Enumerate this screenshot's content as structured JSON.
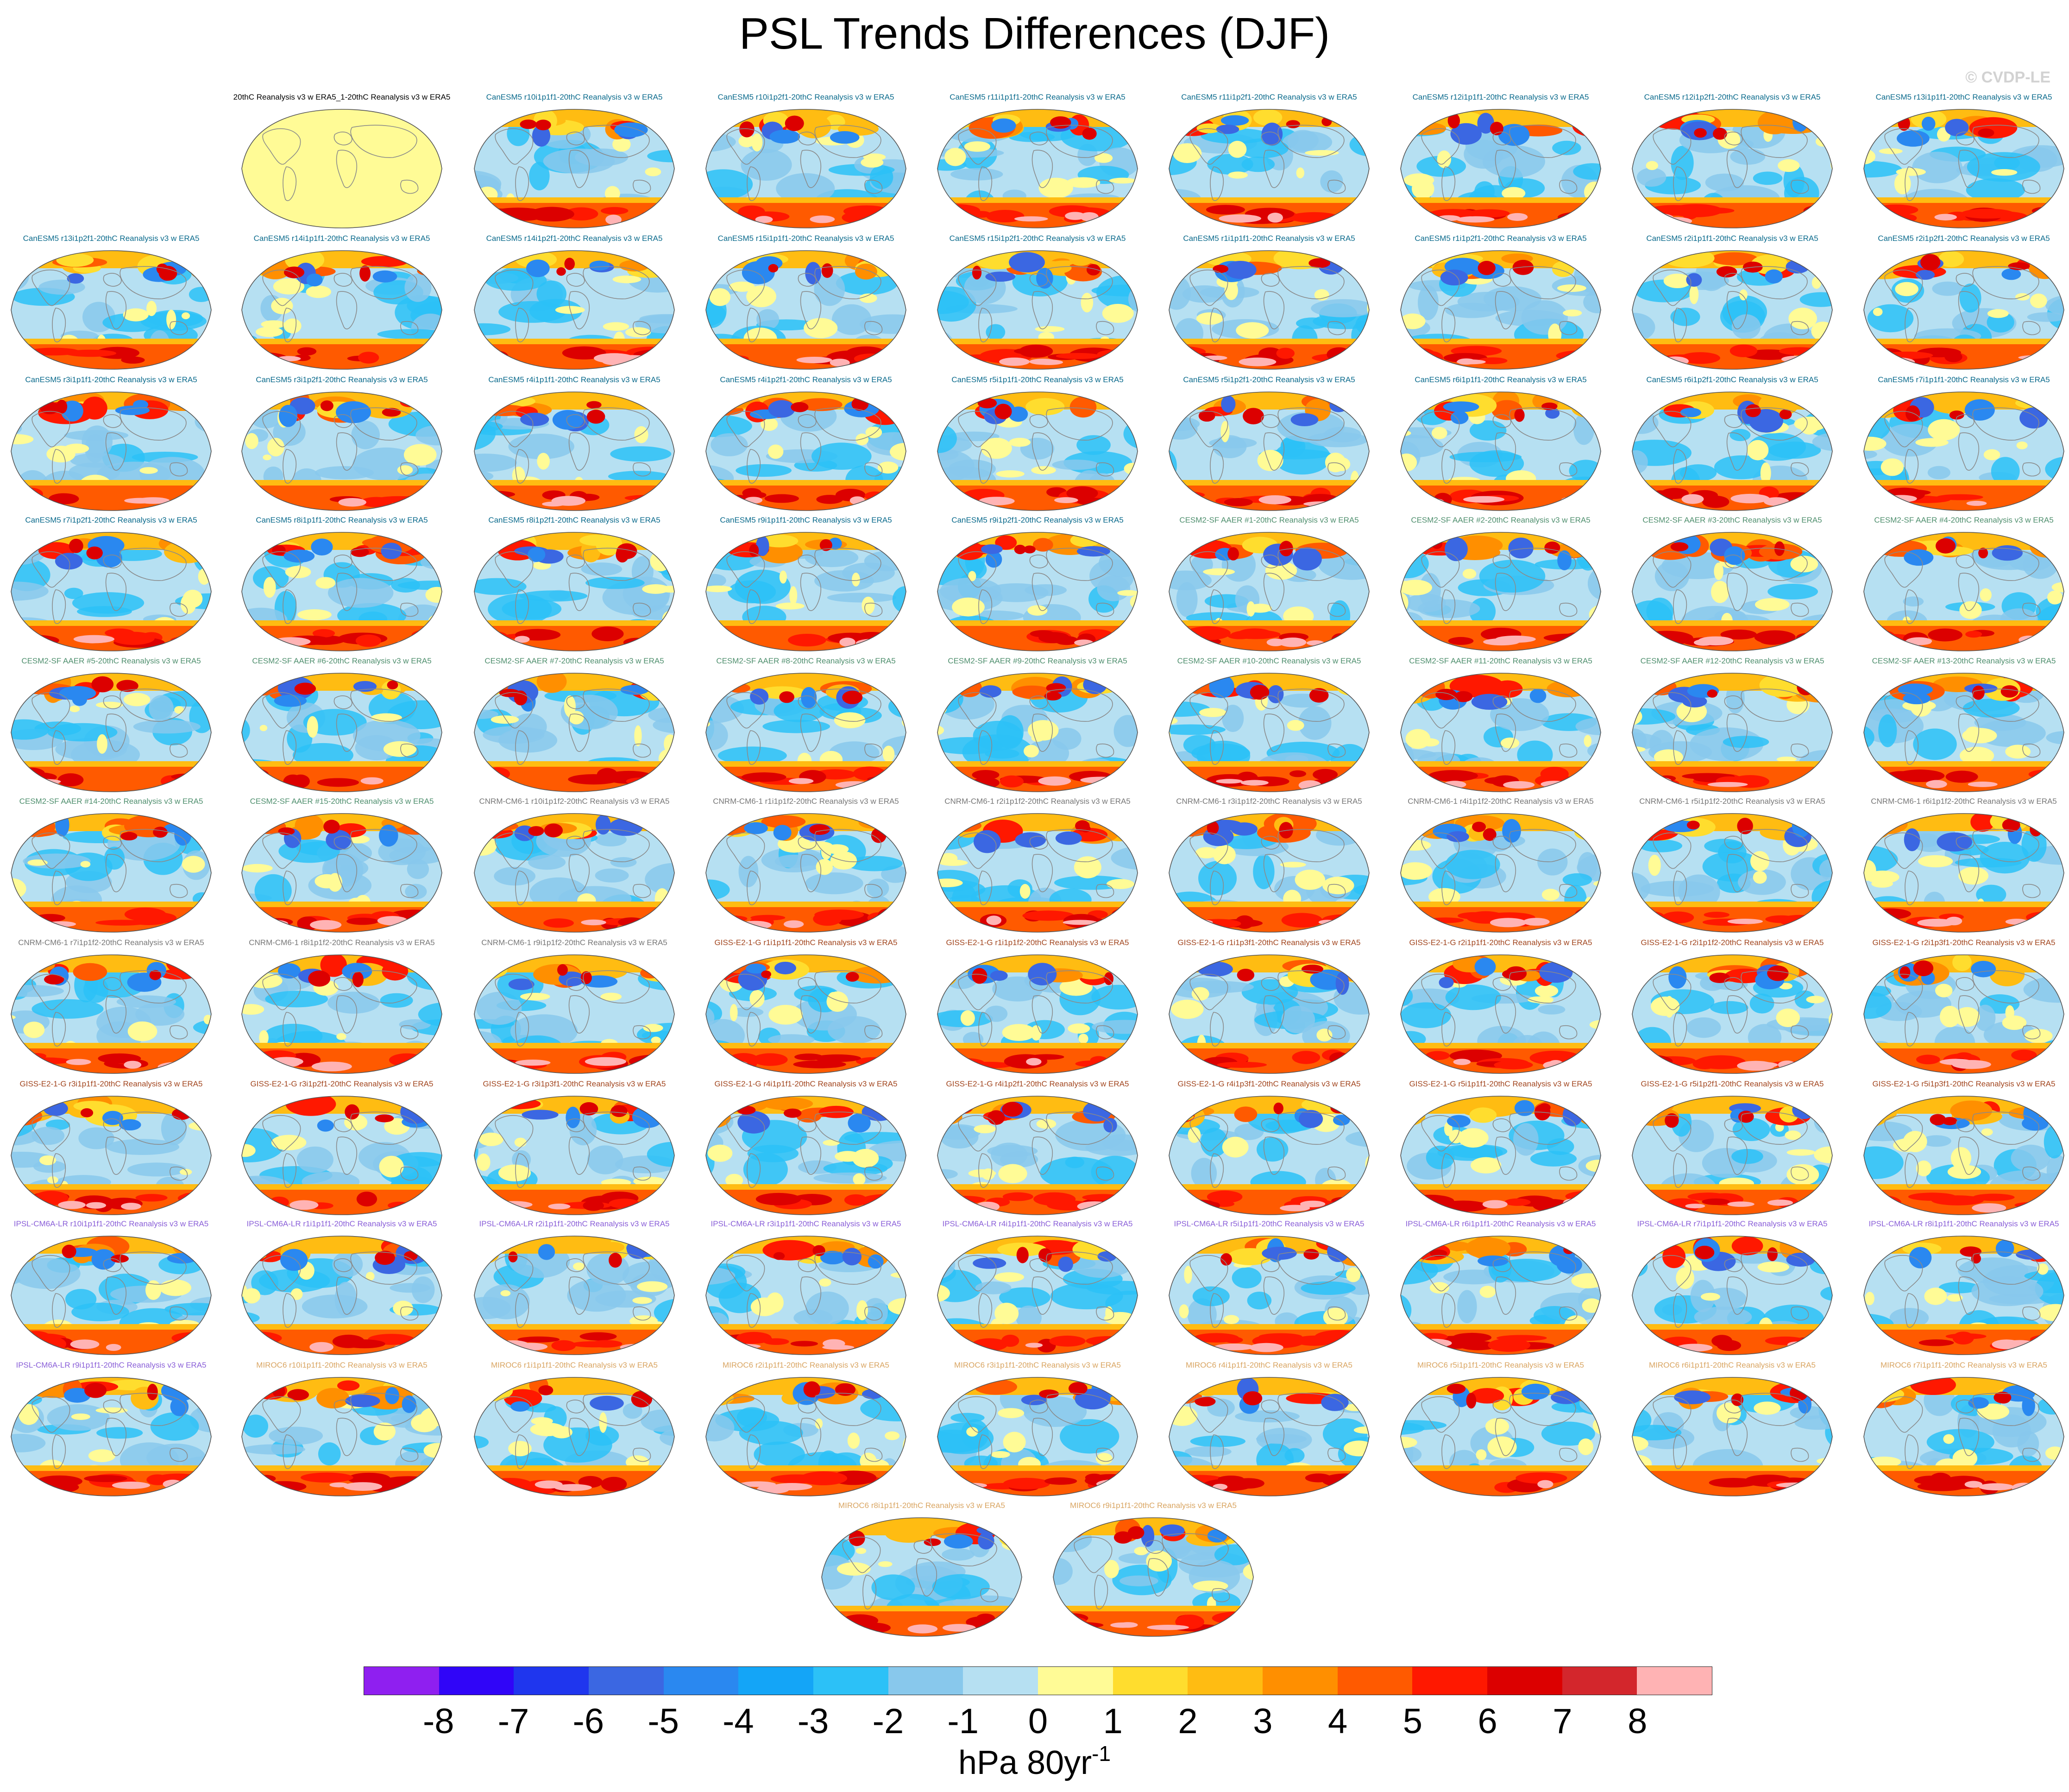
{
  "title": "PSL Trends Differences (DJF)",
  "watermark": "© CVDP-LE",
  "colorbar": {
    "colors": [
      "#8f1ff0",
      "#3005f8",
      "#1f36ee",
      "#3b67e2",
      "#2a88f0",
      "#14a5f7",
      "#2cc1f7",
      "#88c8ec",
      "#b6e0f2",
      "#fffb96",
      "#ffdd2e",
      "#ffbc12",
      "#ff8f00",
      "#ff5a00",
      "#ff1800",
      "#dc0000",
      "#d3262c",
      "#ffb3b4"
    ],
    "ticks": [
      "-8",
      "-7",
      "-6",
      "-5",
      "-4",
      "-3",
      "-2",
      "-1",
      "0",
      "1",
      "2",
      "3",
      "4",
      "5",
      "6",
      "7",
      "8"
    ],
    "units_main": "hPa 80yr",
    "units_sup": "-1"
  },
  "family_colors": {
    "obs": "#000000",
    "CanESM5": "#0a6a8c",
    "CESM2": "#4f8f6e",
    "CNRM": "#777777",
    "GISS": "#a2461f",
    "IPSL": "#8a5fd8",
    "MIROC": "#d9a562"
  },
  "panels": [
    {
      "label": "20thC Reanalysis v3 w ERA5_1-20thC Reanalysis v3 w ERA5",
      "family": "obs"
    },
    {
      "label": "CanESM5 r10i1p1f1-20thC Reanalysis v3 w ERA5",
      "family": "CanESM5"
    },
    {
      "label": "CanESM5 r10i1p2f1-20thC Reanalysis v3 w ERA5",
      "family": "CanESM5"
    },
    {
      "label": "CanESM5 r11i1p1f1-20thC Reanalysis v3 w ERA5",
      "family": "CanESM5"
    },
    {
      "label": "CanESM5 r11i1p2f1-20thC Reanalysis v3 w ERA5",
      "family": "CanESM5"
    },
    {
      "label": "CanESM5 r12i1p1f1-20thC Reanalysis v3 w ERA5",
      "family": "CanESM5"
    },
    {
      "label": "CanESM5 r12i1p2f1-20thC Reanalysis v3 w ERA5",
      "family": "CanESM5"
    },
    {
      "label": "CanESM5 r13i1p1f1-20thC Reanalysis v3 w ERA5",
      "family": "CanESM5"
    },
    {
      "label": "CanESM5 r13i1p2f1-20thC Reanalysis v3 w ERA5",
      "family": "CanESM5"
    },
    {
      "label": "CanESM5 r14i1p1f1-20thC Reanalysis v3 w ERA5",
      "family": "CanESM5"
    },
    {
      "label": "CanESM5 r14i1p2f1-20thC Reanalysis v3 w ERA5",
      "family": "CanESM5"
    },
    {
      "label": "CanESM5 r15i1p1f1-20thC Reanalysis v3 w ERA5",
      "family": "CanESM5"
    },
    {
      "label": "CanESM5 r15i1p2f1-20thC Reanalysis v3 w ERA5",
      "family": "CanESM5"
    },
    {
      "label": "CanESM5 r1i1p1f1-20thC Reanalysis v3 w ERA5",
      "family": "CanESM5"
    },
    {
      "label": "CanESM5 r1i1p2f1-20thC Reanalysis v3 w ERA5",
      "family": "CanESM5"
    },
    {
      "label": "CanESM5 r2i1p1f1-20thC Reanalysis v3 w ERA5",
      "family": "CanESM5"
    },
    {
      "label": "CanESM5 r2i1p2f1-20thC Reanalysis v3 w ERA5",
      "family": "CanESM5"
    },
    {
      "label": "CanESM5 r3i1p1f1-20thC Reanalysis v3 w ERA5",
      "family": "CanESM5"
    },
    {
      "label": "CanESM5 r3i1p2f1-20thC Reanalysis v3 w ERA5",
      "family": "CanESM5"
    },
    {
      "label": "CanESM5 r4i1p1f1-20thC Reanalysis v3 w ERA5",
      "family": "CanESM5"
    },
    {
      "label": "CanESM5 r4i1p2f1-20thC Reanalysis v3 w ERA5",
      "family": "CanESM5"
    },
    {
      "label": "CanESM5 r5i1p1f1-20thC Reanalysis v3 w ERA5",
      "family": "CanESM5"
    },
    {
      "label": "CanESM5 r5i1p2f1-20thC Reanalysis v3 w ERA5",
      "family": "CanESM5"
    },
    {
      "label": "CanESM5 r6i1p1f1-20thC Reanalysis v3 w ERA5",
      "family": "CanESM5"
    },
    {
      "label": "CanESM5 r6i1p2f1-20thC Reanalysis v3 w ERA5",
      "family": "CanESM5"
    },
    {
      "label": "CanESM5 r7i1p1f1-20thC Reanalysis v3 w ERA5",
      "family": "CanESM5"
    },
    {
      "label": "CanESM5 r7i1p2f1-20thC Reanalysis v3 w ERA5",
      "family": "CanESM5"
    },
    {
      "label": "CanESM5 r8i1p1f1-20thC Reanalysis v3 w ERA5",
      "family": "CanESM5"
    },
    {
      "label": "CanESM5 r8i1p2f1-20thC Reanalysis v3 w ERA5",
      "family": "CanESM5"
    },
    {
      "label": "CanESM5 r9i1p1f1-20thC Reanalysis v3 w ERA5",
      "family": "CanESM5"
    },
    {
      "label": "CanESM5 r9i1p2f1-20thC Reanalysis v3 w ERA5",
      "family": "CanESM5"
    },
    {
      "label": "CESM2-SF AAER #1-20thC Reanalysis v3 w ERA5",
      "family": "CESM2"
    },
    {
      "label": "CESM2-SF AAER #2-20thC Reanalysis v3 w ERA5",
      "family": "CESM2"
    },
    {
      "label": "CESM2-SF AAER #3-20thC Reanalysis v3 w ERA5",
      "family": "CESM2"
    },
    {
      "label": "CESM2-SF AAER #4-20thC Reanalysis v3 w ERA5",
      "family": "CESM2"
    },
    {
      "label": "CESM2-SF AAER #5-20thC Reanalysis v3 w ERA5",
      "family": "CESM2"
    },
    {
      "label": "CESM2-SF AAER #6-20thC Reanalysis v3 w ERA5",
      "family": "CESM2"
    },
    {
      "label": "CESM2-SF AAER #7-20thC Reanalysis v3 w ERA5",
      "family": "CESM2"
    },
    {
      "label": "CESM2-SF AAER #8-20thC Reanalysis v3 w ERA5",
      "family": "CESM2"
    },
    {
      "label": "CESM2-SF AAER #9-20thC Reanalysis v3 w ERA5",
      "family": "CESM2"
    },
    {
      "label": "CESM2-SF AAER #10-20thC Reanalysis v3 w ERA5",
      "family": "CESM2"
    },
    {
      "label": "CESM2-SF AAER #11-20thC Reanalysis v3 w ERA5",
      "family": "CESM2"
    },
    {
      "label": "CESM2-SF AAER #12-20thC Reanalysis v3 w ERA5",
      "family": "CESM2"
    },
    {
      "label": "CESM2-SF AAER #13-20thC Reanalysis v3 w ERA5",
      "family": "CESM2"
    },
    {
      "label": "CESM2-SF AAER #14-20thC Reanalysis v3 w ERA5",
      "family": "CESM2"
    },
    {
      "label": "CESM2-SF AAER #15-20thC Reanalysis v3 w ERA5",
      "family": "CESM2"
    },
    {
      "label": "CNRM-CM6-1 r10i1p1f2-20thC Reanalysis v3 w ERA5",
      "family": "CNRM"
    },
    {
      "label": "CNRM-CM6-1 r1i1p1f2-20thC Reanalysis v3 w ERA5",
      "family": "CNRM"
    },
    {
      "label": "CNRM-CM6-1 r2i1p1f2-20thC Reanalysis v3 w ERA5",
      "family": "CNRM"
    },
    {
      "label": "CNRM-CM6-1 r3i1p1f2-20thC Reanalysis v3 w ERA5",
      "family": "CNRM"
    },
    {
      "label": "CNRM-CM6-1 r4i1p1f2-20thC Reanalysis v3 w ERA5",
      "family": "CNRM"
    },
    {
      "label": "CNRM-CM6-1 r5i1p1f2-20thC Reanalysis v3 w ERA5",
      "family": "CNRM"
    },
    {
      "label": "CNRM-CM6-1 r6i1p1f2-20thC Reanalysis v3 w ERA5",
      "family": "CNRM"
    },
    {
      "label": "CNRM-CM6-1 r7i1p1f2-20thC Reanalysis v3 w ERA5",
      "family": "CNRM"
    },
    {
      "label": "CNRM-CM6-1 r8i1p1f2-20thC Reanalysis v3 w ERA5",
      "family": "CNRM"
    },
    {
      "label": "CNRM-CM6-1 r9i1p1f2-20thC Reanalysis v3 w ERA5",
      "family": "CNRM"
    },
    {
      "label": "GISS-E2-1-G r1i1p1f1-20thC Reanalysis v3 w ERA5",
      "family": "GISS"
    },
    {
      "label": "GISS-E2-1-G r1i1p1f2-20thC Reanalysis v3 w ERA5",
      "family": "GISS"
    },
    {
      "label": "GISS-E2-1-G r1i1p3f1-20thC Reanalysis v3 w ERA5",
      "family": "GISS"
    },
    {
      "label": "GISS-E2-1-G r2i1p1f1-20thC Reanalysis v3 w ERA5",
      "family": "GISS"
    },
    {
      "label": "GISS-E2-1-G r2i1p1f2-20thC Reanalysis v3 w ERA5",
      "family": "GISS"
    },
    {
      "label": "GISS-E2-1-G r2i1p3f1-20thC Reanalysis v3 w ERA5",
      "family": "GISS"
    },
    {
      "label": "GISS-E2-1-G r3i1p1f1-20thC Reanalysis v3 w ERA5",
      "family": "GISS"
    },
    {
      "label": "GISS-E2-1-G r3i1p2f1-20thC Reanalysis v3 w ERA5",
      "family": "GISS"
    },
    {
      "label": "GISS-E2-1-G r3i1p3f1-20thC Reanalysis v3 w ERA5",
      "family": "GISS"
    },
    {
      "label": "GISS-E2-1-G r4i1p1f1-20thC Reanalysis v3 w ERA5",
      "family": "GISS"
    },
    {
      "label": "GISS-E2-1-G r4i1p2f1-20thC Reanalysis v3 w ERA5",
      "family": "GISS"
    },
    {
      "label": "GISS-E2-1-G r4i1p3f1-20thC Reanalysis v3 w ERA5",
      "family": "GISS"
    },
    {
      "label": "GISS-E2-1-G r5i1p1f1-20thC Reanalysis v3 w ERA5",
      "family": "GISS"
    },
    {
      "label": "GISS-E2-1-G r5i1p2f1-20thC Reanalysis v3 w ERA5",
      "family": "GISS"
    },
    {
      "label": "GISS-E2-1-G r5i1p3f1-20thC Reanalysis v3 w ERA5",
      "family": "GISS"
    },
    {
      "label": "IPSL-CM6A-LR r10i1p1f1-20thC Reanalysis v3 w ERA5",
      "family": "IPSL"
    },
    {
      "label": "IPSL-CM6A-LR r1i1p1f1-20thC Reanalysis v3 w ERA5",
      "family": "IPSL"
    },
    {
      "label": "IPSL-CM6A-LR r2i1p1f1-20thC Reanalysis v3 w ERA5",
      "family": "IPSL"
    },
    {
      "label": "IPSL-CM6A-LR r3i1p1f1-20thC Reanalysis v3 w ERA5",
      "family": "IPSL"
    },
    {
      "label": "IPSL-CM6A-LR r4i1p1f1-20thC Reanalysis v3 w ERA5",
      "family": "IPSL"
    },
    {
      "label": "IPSL-CM6A-LR r5i1p1f1-20thC Reanalysis v3 w ERA5",
      "family": "IPSL"
    },
    {
      "label": "IPSL-CM6A-LR r6i1p1f1-20thC Reanalysis v3 w ERA5",
      "family": "IPSL"
    },
    {
      "label": "IPSL-CM6A-LR r7i1p1f1-20thC Reanalysis v3 w ERA5",
      "family": "IPSL"
    },
    {
      "label": "IPSL-CM6A-LR r8i1p1f1-20thC Reanalysis v3 w ERA5",
      "family": "IPSL"
    },
    {
      "label": "IPSL-CM6A-LR r9i1p1f1-20thC Reanalysis v3 w ERA5",
      "family": "IPSL"
    },
    {
      "label": "MIROC6 r10i1p1f1-20thC Reanalysis v3 w ERA5",
      "family": "MIROC"
    },
    {
      "label": "MIROC6 r1i1p1f1-20thC Reanalysis v3 w ERA5",
      "family": "MIROC"
    },
    {
      "label": "MIROC6 r2i1p1f1-20thC Reanalysis v3 w ERA5",
      "family": "MIROC"
    },
    {
      "label": "MIROC6 r3i1p1f1-20thC Reanalysis v3 w ERA5",
      "family": "MIROC"
    },
    {
      "label": "MIROC6 r4i1p1f1-20thC Reanalysis v3 w ERA5",
      "family": "MIROC"
    },
    {
      "label": "MIROC6 r5i1p1f1-20thC Reanalysis v3 w ERA5",
      "family": "MIROC"
    },
    {
      "label": "MIROC6 r6i1p1f1-20thC Reanalysis v3 w ERA5",
      "family": "MIROC"
    },
    {
      "label": "MIROC6 r7i1p1f1-20thC Reanalysis v3 w ERA5",
      "family": "MIROC"
    },
    {
      "label": "MIROC6 r8i1p1f1-20thC Reanalysis v3 w ERA5",
      "family": "MIROC"
    },
    {
      "label": "MIROC6 r9i1p1f1-20thC Reanalysis v3 w ERA5",
      "family": "MIROC"
    }
  ]
}
